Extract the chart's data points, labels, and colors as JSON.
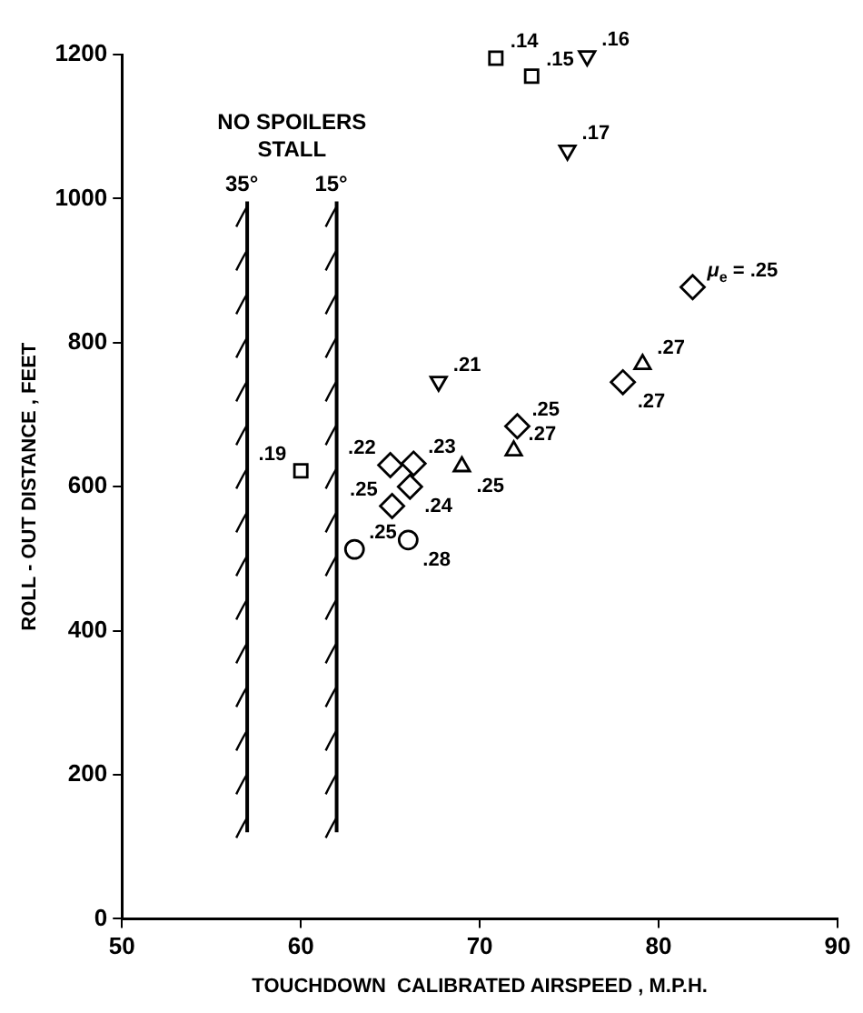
{
  "chart_data": {
    "type": "scatter",
    "xlabel": "TOUCHDOWN  CALIBRATED AIRSPEED , M.P.H.",
    "ylabel": "ROLL - OUT DISTANCE , FEET",
    "xlim": [
      50,
      90
    ],
    "xticks": [
      50,
      60,
      70,
      80,
      90
    ],
    "ylim": [
      0,
      1200
    ],
    "yticks": [
      0,
      200,
      400,
      600,
      800,
      1000,
      1200
    ],
    "grid": false,
    "legend": false,
    "series": [
      {
        "color": "#000000",
        "marker": "square",
        "x": [
          70.9,
          72.9,
          60.0
        ],
        "values": [
          1195,
          1170,
          622
        ]
      },
      {
        "color": "#000000",
        "marker": "triangle-down",
        "x": [
          76.0,
          74.9,
          67.7
        ],
        "values": [
          1198,
          1067,
          746
        ]
      },
      {
        "color": "#000000",
        "marker": "triangle",
        "x": [
          79.1,
          69.0,
          71.9
        ],
        "values": [
          770,
          628,
          650
        ]
      },
      {
        "color": "#000000",
        "marker": "diamond",
        "x": [
          81.9,
          78.0,
          65.0,
          66.3,
          66.1,
          65.1,
          72.1
        ],
        "values": [
          877,
          745,
          630,
          632,
          600,
          573,
          684
        ]
      },
      {
        "color": "#000000",
        "marker": "circle",
        "x": [
          63.0,
          66.0
        ],
        "values": [
          513,
          526
        ]
      }
    ],
    "ref_lines": [
      {
        "axis": "x",
        "value": 57
      },
      {
        "axis": "x",
        "value": 62
      }
    ],
    "annotations": [
      "NO SPOILERS\nSTALL",
      {
        "text": "35°",
        "x": 57,
        "y": 1000
      },
      {
        "text": "15°",
        "x": 62,
        "y": 1000
      },
      {
        "text": ".14",
        "x": 70.9,
        "y": 1195
      },
      {
        "text": ".15",
        "x": 72.9,
        "y": 1170
      },
      {
        "text": ".19",
        "x": 60.0,
        "y": 622
      },
      {
        "text": ".16",
        "x": 76.0,
        "y": 1198
      },
      {
        "text": ".17",
        "x": 74.9,
        "y": 1067
      },
      {
        "text": ".21",
        "x": 67.7,
        "y": 746
      },
      {
        "text": ".27",
        "x": 79.1,
        "y": 770
      },
      {
        "text": ".25",
        "x": 69.0,
        "y": 628
      },
      {
        "text": ".27",
        "x": 71.9,
        "y": 650
      },
      {
        "text": "μ$_{e}$ = .25",
        "x": 81.9,
        "y": 877
      },
      {
        "text": ".27",
        "x": 78.0,
        "y": 745
      },
      {
        "text": ".22",
        "x": 65.0,
        "y": 630
      },
      {
        "text": ".23",
        "x": 66.3,
        "y": 632
      },
      {
        "text": ".24",
        "x": 66.1,
        "y": 600
      },
      {
        "text": ".25",
        "x": 65.1,
        "y": 573
      },
      {
        "text": ".25",
        "x": 72.1,
        "y": 684
      },
      {
        "text": ".25",
        "x": 63.0,
        "y": 513
      },
      {
        "text": ".28",
        "x": 66.0,
        "y": 526
      }
    ]
  }
}
